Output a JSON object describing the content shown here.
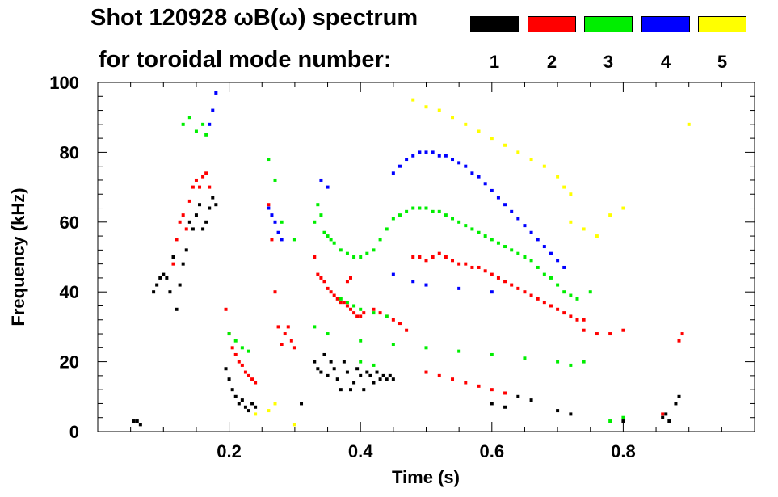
{
  "header": {
    "title_line1": "Shot 120928 ωB(ω) spectrum",
    "title_line2": "for toroidal mode number:"
  },
  "legend": [
    {
      "label": "1",
      "color": "#000000"
    },
    {
      "label": "2",
      "color": "#ff0000"
    },
    {
      "label": "3",
      "color": "#00ee00"
    },
    {
      "label": "4",
      "color": "#0000ff"
    },
    {
      "label": "5",
      "color": "#ffff00"
    }
  ],
  "chart_data": {
    "type": "scatter",
    "title": "Shot 120928 ωB(ω) spectrum for toroidal mode number",
    "xlabel": "Time (s)",
    "ylabel": "Frequency (kHz)",
    "xlim": [
      0.0,
      1.0
    ],
    "ylim": [
      0,
      100
    ],
    "xticks": [
      0.2,
      0.4,
      0.6,
      0.8
    ],
    "xtick_labels": [
      "0.2",
      "0.4",
      "0.6",
      "0.8"
    ],
    "yticks": [
      0,
      20,
      40,
      60,
      80,
      100
    ],
    "ytick_labels": [
      "0",
      "20",
      "40",
      "60",
      "80",
      "100"
    ],
    "grid": false,
    "legend_position": "top-right",
    "series": [
      {
        "name": "n=1",
        "color": "#000000",
        "points": [
          [
            0.055,
            3
          ],
          [
            0.06,
            3
          ],
          [
            0.065,
            2
          ],
          [
            0.085,
            40
          ],
          [
            0.09,
            42
          ],
          [
            0.095,
            44
          ],
          [
            0.1,
            45
          ],
          [
            0.105,
            44
          ],
          [
            0.11,
            40
          ],
          [
            0.115,
            50
          ],
          [
            0.12,
            35
          ],
          [
            0.125,
            42
          ],
          [
            0.13,
            48
          ],
          [
            0.135,
            52
          ],
          [
            0.14,
            60
          ],
          [
            0.145,
            58
          ],
          [
            0.15,
            62
          ],
          [
            0.155,
            65
          ],
          [
            0.16,
            58
          ],
          [
            0.165,
            60
          ],
          [
            0.17,
            64
          ],
          [
            0.175,
            67
          ],
          [
            0.18,
            65
          ],
          [
            0.195,
            18
          ],
          [
            0.2,
            15
          ],
          [
            0.205,
            12
          ],
          [
            0.21,
            10
          ],
          [
            0.215,
            8
          ],
          [
            0.22,
            9
          ],
          [
            0.225,
            7
          ],
          [
            0.23,
            6
          ],
          [
            0.235,
            8
          ],
          [
            0.24,
            7
          ],
          [
            0.31,
            8
          ],
          [
            0.33,
            20
          ],
          [
            0.335,
            18
          ],
          [
            0.34,
            17
          ],
          [
            0.345,
            22
          ],
          [
            0.35,
            16
          ],
          [
            0.355,
            20
          ],
          [
            0.36,
            18
          ],
          [
            0.365,
            15
          ],
          [
            0.37,
            12
          ],
          [
            0.375,
            20
          ],
          [
            0.38,
            17
          ],
          [
            0.385,
            12
          ],
          [
            0.39,
            14
          ],
          [
            0.395,
            18
          ],
          [
            0.4,
            16
          ],
          [
            0.405,
            12
          ],
          [
            0.41,
            17
          ],
          [
            0.415,
            16
          ],
          [
            0.42,
            14
          ],
          [
            0.425,
            17
          ],
          [
            0.43,
            15
          ],
          [
            0.435,
            16
          ],
          [
            0.44,
            15
          ],
          [
            0.445,
            16
          ],
          [
            0.45,
            15
          ],
          [
            0.6,
            8
          ],
          [
            0.62,
            7
          ],
          [
            0.64,
            10
          ],
          [
            0.66,
            9
          ],
          [
            0.7,
            6
          ],
          [
            0.72,
            5
          ],
          [
            0.8,
            3
          ],
          [
            0.86,
            4
          ],
          [
            0.865,
            5
          ],
          [
            0.87,
            3
          ],
          [
            0.88,
            8
          ],
          [
            0.885,
            10
          ]
        ]
      },
      {
        "name": "n=2",
        "color": "#ff0000",
        "points": [
          [
            0.115,
            48
          ],
          [
            0.12,
            55
          ],
          [
            0.125,
            60
          ],
          [
            0.13,
            62
          ],
          [
            0.135,
            58
          ],
          [
            0.14,
            66
          ],
          [
            0.145,
            70
          ],
          [
            0.15,
            72
          ],
          [
            0.155,
            70
          ],
          [
            0.16,
            73
          ],
          [
            0.165,
            74
          ],
          [
            0.17,
            70
          ],
          [
            0.195,
            35
          ],
          [
            0.2,
            28
          ],
          [
            0.205,
            24
          ],
          [
            0.21,
            22
          ],
          [
            0.215,
            20
          ],
          [
            0.22,
            19
          ],
          [
            0.225,
            17
          ],
          [
            0.23,
            16
          ],
          [
            0.235,
            15
          ],
          [
            0.24,
            14
          ],
          [
            0.26,
            65
          ],
          [
            0.265,
            55
          ],
          [
            0.27,
            40
          ],
          [
            0.275,
            30
          ],
          [
            0.28,
            25
          ],
          [
            0.285,
            28
          ],
          [
            0.29,
            30
          ],
          [
            0.295,
            26
          ],
          [
            0.3,
            24
          ],
          [
            0.33,
            50
          ],
          [
            0.335,
            45
          ],
          [
            0.34,
            44
          ],
          [
            0.345,
            43
          ],
          [
            0.35,
            41
          ],
          [
            0.355,
            40
          ],
          [
            0.36,
            39
          ],
          [
            0.365,
            38
          ],
          [
            0.37,
            37
          ],
          [
            0.375,
            37
          ],
          [
            0.38,
            36
          ],
          [
            0.385,
            35
          ],
          [
            0.39,
            34
          ],
          [
            0.395,
            33
          ],
          [
            0.4,
            33
          ],
          [
            0.405,
            34
          ],
          [
            0.38,
            43
          ],
          [
            0.385,
            44
          ],
          [
            0.42,
            35
          ],
          [
            0.43,
            34
          ],
          [
            0.44,
            33
          ],
          [
            0.45,
            32
          ],
          [
            0.46,
            31
          ],
          [
            0.47,
            29
          ],
          [
            0.48,
            50
          ],
          [
            0.49,
            50
          ],
          [
            0.5,
            49
          ],
          [
            0.51,
            50
          ],
          [
            0.52,
            51
          ],
          [
            0.53,
            50
          ],
          [
            0.54,
            49
          ],
          [
            0.55,
            48
          ],
          [
            0.56,
            48
          ],
          [
            0.57,
            47
          ],
          [
            0.58,
            47
          ],
          [
            0.59,
            46
          ],
          [
            0.6,
            45
          ],
          [
            0.61,
            44
          ],
          [
            0.62,
            43
          ],
          [
            0.63,
            42
          ],
          [
            0.64,
            41
          ],
          [
            0.65,
            40
          ],
          [
            0.66,
            39
          ],
          [
            0.67,
            38
          ],
          [
            0.68,
            37
          ],
          [
            0.69,
            36
          ],
          [
            0.7,
            35
          ],
          [
            0.71,
            34
          ],
          [
            0.72,
            33
          ],
          [
            0.73,
            32
          ],
          [
            0.74,
            32
          ],
          [
            0.5,
            17
          ],
          [
            0.52,
            16
          ],
          [
            0.54,
            15
          ],
          [
            0.56,
            14
          ],
          [
            0.58,
            13
          ],
          [
            0.6,
            12
          ],
          [
            0.62,
            11
          ],
          [
            0.74,
            29
          ],
          [
            0.76,
            28
          ],
          [
            0.78,
            28
          ],
          [
            0.8,
            29
          ],
          [
            0.86,
            5
          ],
          [
            0.885,
            26
          ],
          [
            0.89,
            28
          ]
        ]
      },
      {
        "name": "n=3",
        "color": "#00ee00",
        "points": [
          [
            0.13,
            88
          ],
          [
            0.14,
            90
          ],
          [
            0.15,
            86
          ],
          [
            0.16,
            88
          ],
          [
            0.165,
            85
          ],
          [
            0.2,
            28
          ],
          [
            0.21,
            26
          ],
          [
            0.22,
            24
          ],
          [
            0.23,
            23
          ],
          [
            0.26,
            78
          ],
          [
            0.27,
            72
          ],
          [
            0.28,
            60
          ],
          [
            0.3,
            55
          ],
          [
            0.33,
            60
          ],
          [
            0.335,
            65
          ],
          [
            0.34,
            62
          ],
          [
            0.345,
            57
          ],
          [
            0.35,
            56
          ],
          [
            0.355,
            55
          ],
          [
            0.36,
            54
          ],
          [
            0.37,
            52
          ],
          [
            0.38,
            51
          ],
          [
            0.39,
            50
          ],
          [
            0.4,
            50
          ],
          [
            0.41,
            51
          ],
          [
            0.42,
            52
          ],
          [
            0.43,
            55
          ],
          [
            0.44,
            58
          ],
          [
            0.45,
            61
          ],
          [
            0.46,
            62
          ],
          [
            0.47,
            63
          ],
          [
            0.48,
            64
          ],
          [
            0.49,
            64
          ],
          [
            0.5,
            64
          ],
          [
            0.51,
            63
          ],
          [
            0.52,
            63
          ],
          [
            0.53,
            62
          ],
          [
            0.54,
            61
          ],
          [
            0.55,
            60
          ],
          [
            0.56,
            59
          ],
          [
            0.57,
            58
          ],
          [
            0.58,
            57
          ],
          [
            0.59,
            56
          ],
          [
            0.6,
            55
          ],
          [
            0.61,
            54
          ],
          [
            0.62,
            53
          ],
          [
            0.63,
            52
          ],
          [
            0.64,
            51
          ],
          [
            0.65,
            50
          ],
          [
            0.66,
            49
          ],
          [
            0.67,
            47
          ],
          [
            0.68,
            45
          ],
          [
            0.69,
            44
          ],
          [
            0.7,
            42
          ],
          [
            0.71,
            40
          ],
          [
            0.72,
            39
          ],
          [
            0.73,
            38
          ],
          [
            0.37,
            38
          ],
          [
            0.38,
            37
          ],
          [
            0.39,
            36
          ],
          [
            0.4,
            35
          ],
          [
            0.42,
            34
          ],
          [
            0.44,
            33
          ],
          [
            0.33,
            30
          ],
          [
            0.35,
            28
          ],
          [
            0.4,
            26
          ],
          [
            0.45,
            25
          ],
          [
            0.5,
            24
          ],
          [
            0.55,
            23
          ],
          [
            0.6,
            22
          ],
          [
            0.65,
            21
          ],
          [
            0.7,
            20
          ],
          [
            0.72,
            19
          ],
          [
            0.74,
            20
          ],
          [
            0.4,
            20
          ],
          [
            0.42,
            19
          ],
          [
            0.78,
            3
          ],
          [
            0.8,
            4
          ],
          [
            0.75,
            40
          ]
        ]
      },
      {
        "name": "n=4",
        "color": "#0000ff",
        "points": [
          [
            0.17,
            88
          ],
          [
            0.175,
            92
          ],
          [
            0.18,
            97
          ],
          [
            0.26,
            64
          ],
          [
            0.265,
            62
          ],
          [
            0.27,
            60
          ],
          [
            0.275,
            57
          ],
          [
            0.28,
            55
          ],
          [
            0.45,
            74
          ],
          [
            0.46,
            76
          ],
          [
            0.47,
            78
          ],
          [
            0.48,
            79
          ],
          [
            0.49,
            80
          ],
          [
            0.5,
            80
          ],
          [
            0.51,
            80
          ],
          [
            0.52,
            79
          ],
          [
            0.53,
            79
          ],
          [
            0.54,
            78
          ],
          [
            0.55,
            77
          ],
          [
            0.56,
            76
          ],
          [
            0.57,
            74
          ],
          [
            0.58,
            73
          ],
          [
            0.59,
            71
          ],
          [
            0.6,
            69
          ],
          [
            0.61,
            67
          ],
          [
            0.62,
            65
          ],
          [
            0.63,
            63
          ],
          [
            0.64,
            61
          ],
          [
            0.65,
            59
          ],
          [
            0.66,
            57
          ],
          [
            0.67,
            55
          ],
          [
            0.68,
            53
          ],
          [
            0.69,
            51
          ],
          [
            0.7,
            49
          ],
          [
            0.71,
            47
          ],
          [
            0.45,
            45
          ],
          [
            0.48,
            43
          ],
          [
            0.5,
            42
          ],
          [
            0.55,
            41
          ],
          [
            0.6,
            40
          ],
          [
            0.35,
            70
          ],
          [
            0.34,
            72
          ]
        ]
      },
      {
        "name": "n=5",
        "color": "#ffff00",
        "points": [
          [
            0.24,
            5
          ],
          [
            0.26,
            6
          ],
          [
            0.27,
            8
          ],
          [
            0.3,
            2
          ],
          [
            0.48,
            95
          ],
          [
            0.5,
            93
          ],
          [
            0.52,
            92
          ],
          [
            0.54,
            90
          ],
          [
            0.56,
            88
          ],
          [
            0.58,
            86
          ],
          [
            0.6,
            84
          ],
          [
            0.62,
            82
          ],
          [
            0.64,
            80
          ],
          [
            0.66,
            78
          ],
          [
            0.68,
            76
          ],
          [
            0.7,
            73
          ],
          [
            0.71,
            70
          ],
          [
            0.72,
            68
          ],
          [
            0.72,
            60
          ],
          [
            0.74,
            58
          ],
          [
            0.76,
            56
          ],
          [
            0.78,
            62
          ],
          [
            0.8,
            64
          ],
          [
            0.9,
            88
          ]
        ]
      }
    ]
  }
}
